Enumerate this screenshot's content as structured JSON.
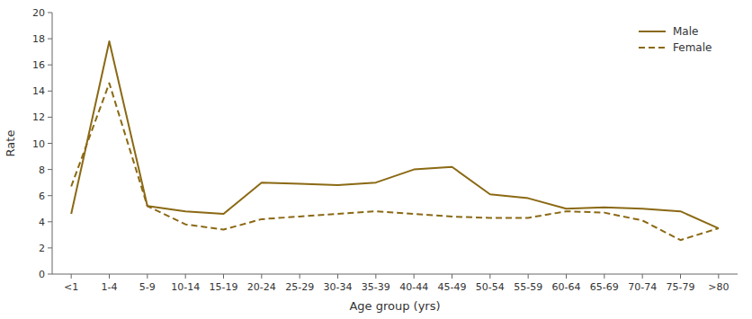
{
  "chart_data": {
    "type": "line",
    "categories": [
      "<1",
      "1-4",
      "5-9",
      "10-14",
      "15-19",
      "20-24",
      "25-29",
      "30-34",
      "35-39",
      "40-44",
      "45-49",
      "50-54",
      "55-59",
      "60-64",
      "65-69",
      "70-74",
      "75-79",
      ">80"
    ],
    "series": [
      {
        "name": "Male",
        "color": "#8B6914",
        "line_style": "solid",
        "values": [
          4.6,
          17.8,
          5.2,
          4.8,
          4.6,
          7.0,
          6.9,
          6.8,
          7.0,
          8.0,
          8.2,
          6.1,
          5.8,
          5.0,
          5.1,
          5.0,
          4.8,
          3.5
        ]
      },
      {
        "name": "Female",
        "color": "#8B6914",
        "line_style": "dashed",
        "values": [
          6.7,
          14.6,
          5.2,
          3.8,
          3.4,
          4.2,
          4.4,
          4.6,
          4.8,
          4.6,
          4.4,
          4.3,
          4.3,
          4.8,
          4.7,
          4.1,
          2.6,
          3.5
        ]
      }
    ],
    "x_label": "Age group (yrs)",
    "y_label": "Rate",
    "ylim": [
      0,
      20
    ],
    "yticks": [
      0,
      2,
      4,
      6,
      8,
      10,
      12,
      14,
      16,
      18,
      20
    ],
    "legend": "upper right",
    "grid": false
  }
}
